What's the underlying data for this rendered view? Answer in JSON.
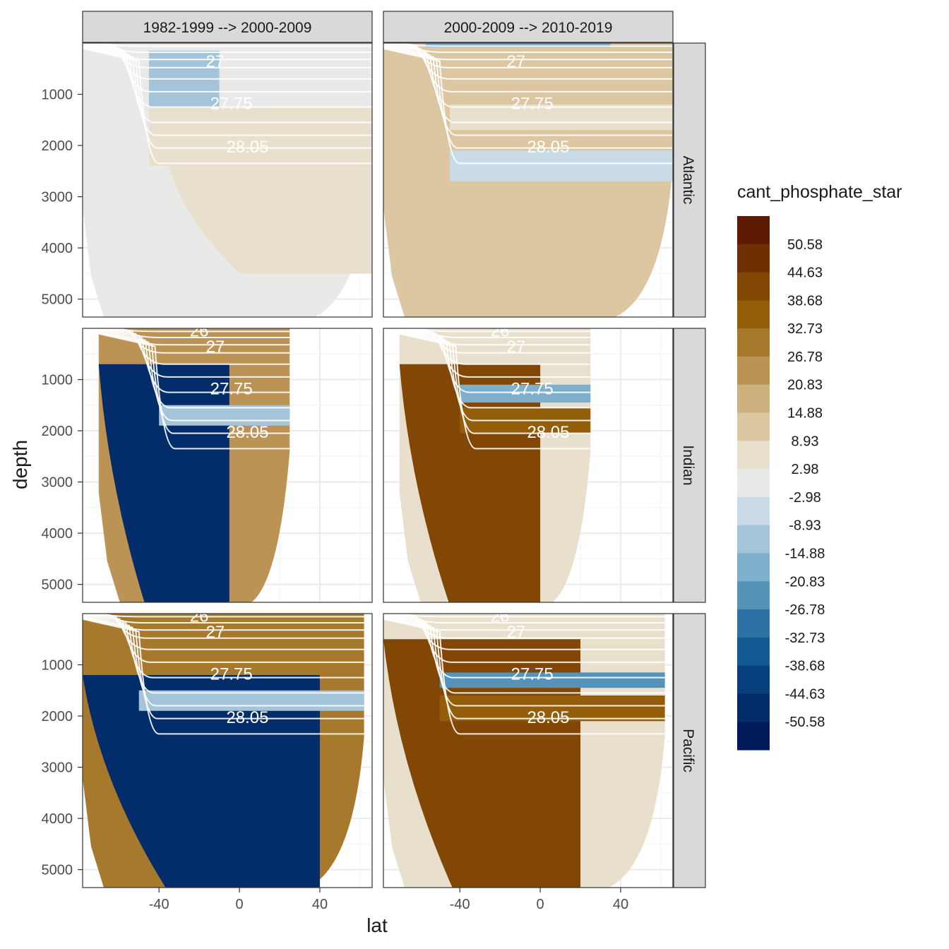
{
  "chart_data": {
    "type": "heatmap",
    "subtype": "faceted filled-contour ocean sections",
    "x_label": "lat",
    "y_label": "depth",
    "x_ticks": [
      -40,
      0,
      40
    ],
    "y_ticks": [
      1000,
      2000,
      3000,
      4000,
      5000
    ],
    "xlim": [
      -78,
      66
    ],
    "ylim": [
      5350,
      0
    ],
    "y_reversed": true,
    "grid": true,
    "columns": [
      "1982-1999 --> 2000-2009",
      "2000-2009 --> 2010-2019"
    ],
    "rows": [
      "Atlantic",
      "Indian",
      "Pacific"
    ],
    "legend": {
      "title": "cant_phosphate_star",
      "position": "right",
      "levels": [
        "50.58",
        "44.63",
        "38.68",
        "32.73",
        "26.78",
        "20.83",
        "14.88",
        "8.93",
        "2.98",
        "-2.98",
        "-8.93",
        "-14.88",
        "-20.83",
        "-26.78",
        "-32.73",
        "-38.68",
        "-44.63",
        "-50.58"
      ],
      "colors": [
        "#5e1a02",
        "#6f2f03",
        "#824705",
        "#935d0a",
        "#a6792d",
        "#bb9455",
        "#ccb07e",
        "#dcc7a2",
        "#e8dfcc",
        "#e9eae7",
        "#c8dbe7",
        "#a4c5d9",
        "#7eafcb",
        "#5593b8",
        "#2d72a4",
        "#125a92",
        "#063f7b",
        "#032c6a",
        "#011a5a"
      ]
    },
    "isopycnals": {
      "color": "#ffffff",
      "labeled": [
        "26",
        "27",
        "27.75",
        "28.05"
      ]
    },
    "sections": [
      {
        "ocean": "Atlantic",
        "period": "1982-1999 --> 2000-2009",
        "lat_range": [
          -78,
          66
        ],
        "bottom": 5350,
        "dominant_range": "-2.98 to 2.98",
        "features": [
          {
            "lat": [
              -45,
              -10
            ],
            "depth": [
              150,
              1250
            ],
            "range": "-14.88 to -8.93"
          },
          {
            "lat": [
              -45,
              66
            ],
            "depth": [
              1250,
              2400
            ],
            "range": "2.98 to 8.93"
          },
          {
            "lat": [
              -35,
              66
            ],
            "depth": [
              2400,
              4500
            ],
            "range": "2.98 to 8.93"
          }
        ]
      },
      {
        "ocean": "Atlantic",
        "period": "2000-2009 --> 2010-2019",
        "lat_range": [
          -78,
          66
        ],
        "bottom": 5350,
        "dominant_range": "8.93 to 14.88",
        "features": [
          {
            "lat": [
              -57,
              35
            ],
            "depth": [
              0,
              80
            ],
            "range": "-38.68 to -14.88"
          },
          {
            "lat": [
              -45,
              66
            ],
            "depth": [
              2100,
              2700
            ],
            "range": "-8.93 to -2.98"
          },
          {
            "lat": [
              -45,
              66
            ],
            "depth": [
              1200,
              1700
            ],
            "range": "2.98 to 8.93"
          }
        ]
      },
      {
        "ocean": "Indian",
        "period": "1982-1999 --> 2000-2009",
        "lat_range": [
          -70,
          25
        ],
        "bottom": 5350,
        "dominant_range": "20.83 to 26.78",
        "features": [
          {
            "lat": [
              -70,
              -5
            ],
            "depth": [
              700,
              5350
            ],
            "range": "-50.58 to -44.63"
          },
          {
            "lat": [
              -40,
              25
            ],
            "depth": [
              1500,
              1900
            ],
            "range": "-14.88 to -8.93"
          }
        ]
      },
      {
        "ocean": "Indian",
        "period": "2000-2009 --> 2010-2019",
        "lat_range": [
          -70,
          25
        ],
        "bottom": 5350,
        "dominant_range": "2.98 to 8.93",
        "features": [
          {
            "lat": [
              -70,
              0
            ],
            "depth": [
              700,
              5350
            ],
            "range": "38.68 to 44.63"
          },
          {
            "lat": [
              -40,
              25
            ],
            "depth": [
              1550,
              2050
            ],
            "range": "32.73 to 38.68"
          },
          {
            "lat": [
              -40,
              25
            ],
            "depth": [
              1100,
              1450
            ],
            "range": "-26.78 to -14.88"
          }
        ]
      },
      {
        "ocean": "Pacific",
        "period": "1982-1999 --> 2000-2009",
        "lat_range": [
          -78,
          62
        ],
        "bottom": 5350,
        "dominant_range": "26.78 to 32.73",
        "features": [
          {
            "lat": [
              -78,
              40
            ],
            "depth": [
              1200,
              5350
            ],
            "range": "-50.58 to -44.63"
          },
          {
            "lat": [
              -50,
              62
            ],
            "depth": [
              1500,
              1900
            ],
            "range": "-20.83 to -8.93"
          }
        ]
      },
      {
        "ocean": "Pacific",
        "period": "2000-2009 --> 2010-2019",
        "lat_range": [
          -78,
          62
        ],
        "bottom": 5350,
        "dominant_range": "2.98 to 8.93",
        "features": [
          {
            "lat": [
              -78,
              20
            ],
            "depth": [
              500,
              5350
            ],
            "range": "38.68 to 44.63"
          },
          {
            "lat": [
              -50,
              62
            ],
            "depth": [
              1600,
              2100
            ],
            "range": "32.73 to 38.68"
          },
          {
            "lat": [
              -50,
              62
            ],
            "depth": [
              1150,
              1450
            ],
            "range": "-32.73 to -20.83"
          }
        ]
      }
    ]
  }
}
